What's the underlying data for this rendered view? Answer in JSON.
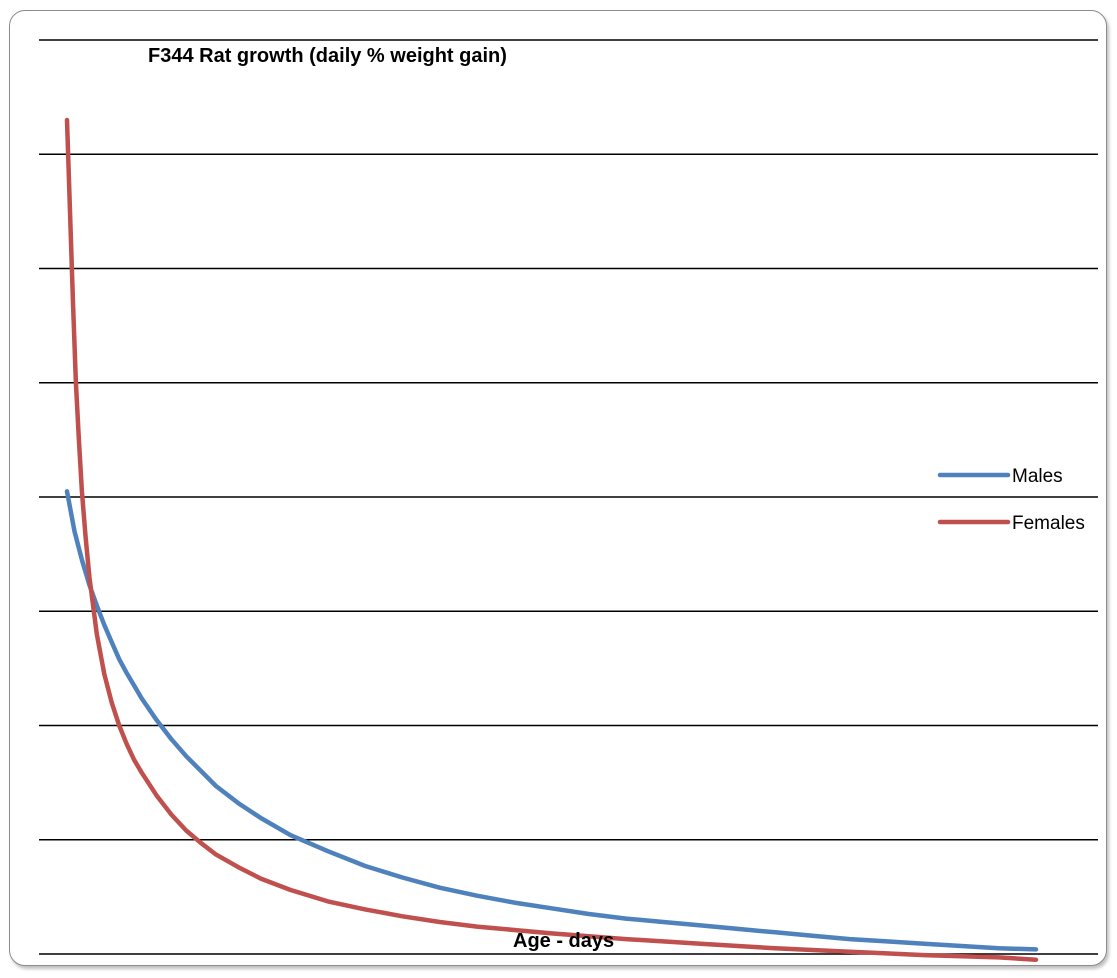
{
  "chart_data": {
    "type": "line",
    "title": "F344 Rat growth (daily % weight gain)",
    "xlabel": "Age - days",
    "ylabel": "",
    "grid": true,
    "legend_position": "right",
    "ylim": [
      0,
      8
    ],
    "series": [
      {
        "name": "Males",
        "color": "#4f81bd",
        "points": [
          [
            0,
            4.05
          ],
          [
            1,
            3.7
          ],
          [
            2,
            3.45
          ],
          [
            3,
            3.23
          ],
          [
            4,
            3.05
          ],
          [
            5,
            2.88
          ],
          [
            6,
            2.73
          ],
          [
            7,
            2.58
          ],
          [
            8,
            2.46
          ],
          [
            9,
            2.35
          ],
          [
            10,
            2.24
          ],
          [
            12,
            2.05
          ],
          [
            14,
            1.88
          ],
          [
            16,
            1.73
          ],
          [
            18,
            1.6
          ],
          [
            20,
            1.47
          ],
          [
            23,
            1.32
          ],
          [
            26,
            1.19
          ],
          [
            30,
            1.04
          ],
          [
            35,
            0.9
          ],
          [
            40,
            0.77
          ],
          [
            45,
            0.67
          ],
          [
            50,
            0.58
          ],
          [
            55,
            0.51
          ],
          [
            60,
            0.45
          ],
          [
            65,
            0.4
          ],
          [
            70,
            0.35
          ],
          [
            75,
            0.31
          ],
          [
            80,
            0.28
          ],
          [
            85,
            0.25
          ],
          [
            90,
            0.22
          ],
          [
            95,
            0.19
          ],
          [
            100,
            0.16
          ],
          [
            105,
            0.13
          ],
          [
            110,
            0.11
          ],
          [
            115,
            0.09
          ],
          [
            120,
            0.07
          ],
          [
            125,
            0.05
          ],
          [
            130,
            0.04
          ]
        ]
      },
      {
        "name": "Females",
        "color": "#c0504d",
        "points": [
          [
            0,
            7.3
          ],
          [
            0.4,
            6.5
          ],
          [
            0.8,
            5.7
          ],
          [
            1.2,
            5.0
          ],
          [
            1.6,
            4.5
          ],
          [
            2.0,
            4.05
          ],
          [
            2.5,
            3.65
          ],
          [
            3,
            3.3
          ],
          [
            3.5,
            3.05
          ],
          [
            4,
            2.8
          ],
          [
            5,
            2.45
          ],
          [
            6,
            2.2
          ],
          [
            7,
            2.0
          ],
          [
            8,
            1.84
          ],
          [
            9,
            1.7
          ],
          [
            10,
            1.59
          ],
          [
            12,
            1.39
          ],
          [
            14,
            1.22
          ],
          [
            16,
            1.08
          ],
          [
            18,
            0.97
          ],
          [
            20,
            0.87
          ],
          [
            23,
            0.76
          ],
          [
            26,
            0.66
          ],
          [
            30,
            0.56
          ],
          [
            35,
            0.46
          ],
          [
            40,
            0.39
          ],
          [
            45,
            0.33
          ],
          [
            50,
            0.28
          ],
          [
            55,
            0.24
          ],
          [
            60,
            0.21
          ],
          [
            65,
            0.18
          ],
          [
            70,
            0.155
          ],
          [
            75,
            0.13
          ],
          [
            80,
            0.11
          ],
          [
            85,
            0.09
          ],
          [
            90,
            0.07
          ],
          [
            95,
            0.05
          ],
          [
            100,
            0.035
          ],
          [
            105,
            0.02
          ],
          [
            110,
            0.005
          ],
          [
            115,
            -0.01
          ],
          [
            120,
            -0.02
          ],
          [
            125,
            -0.03
          ],
          [
            130,
            -0.05
          ]
        ]
      }
    ]
  }
}
